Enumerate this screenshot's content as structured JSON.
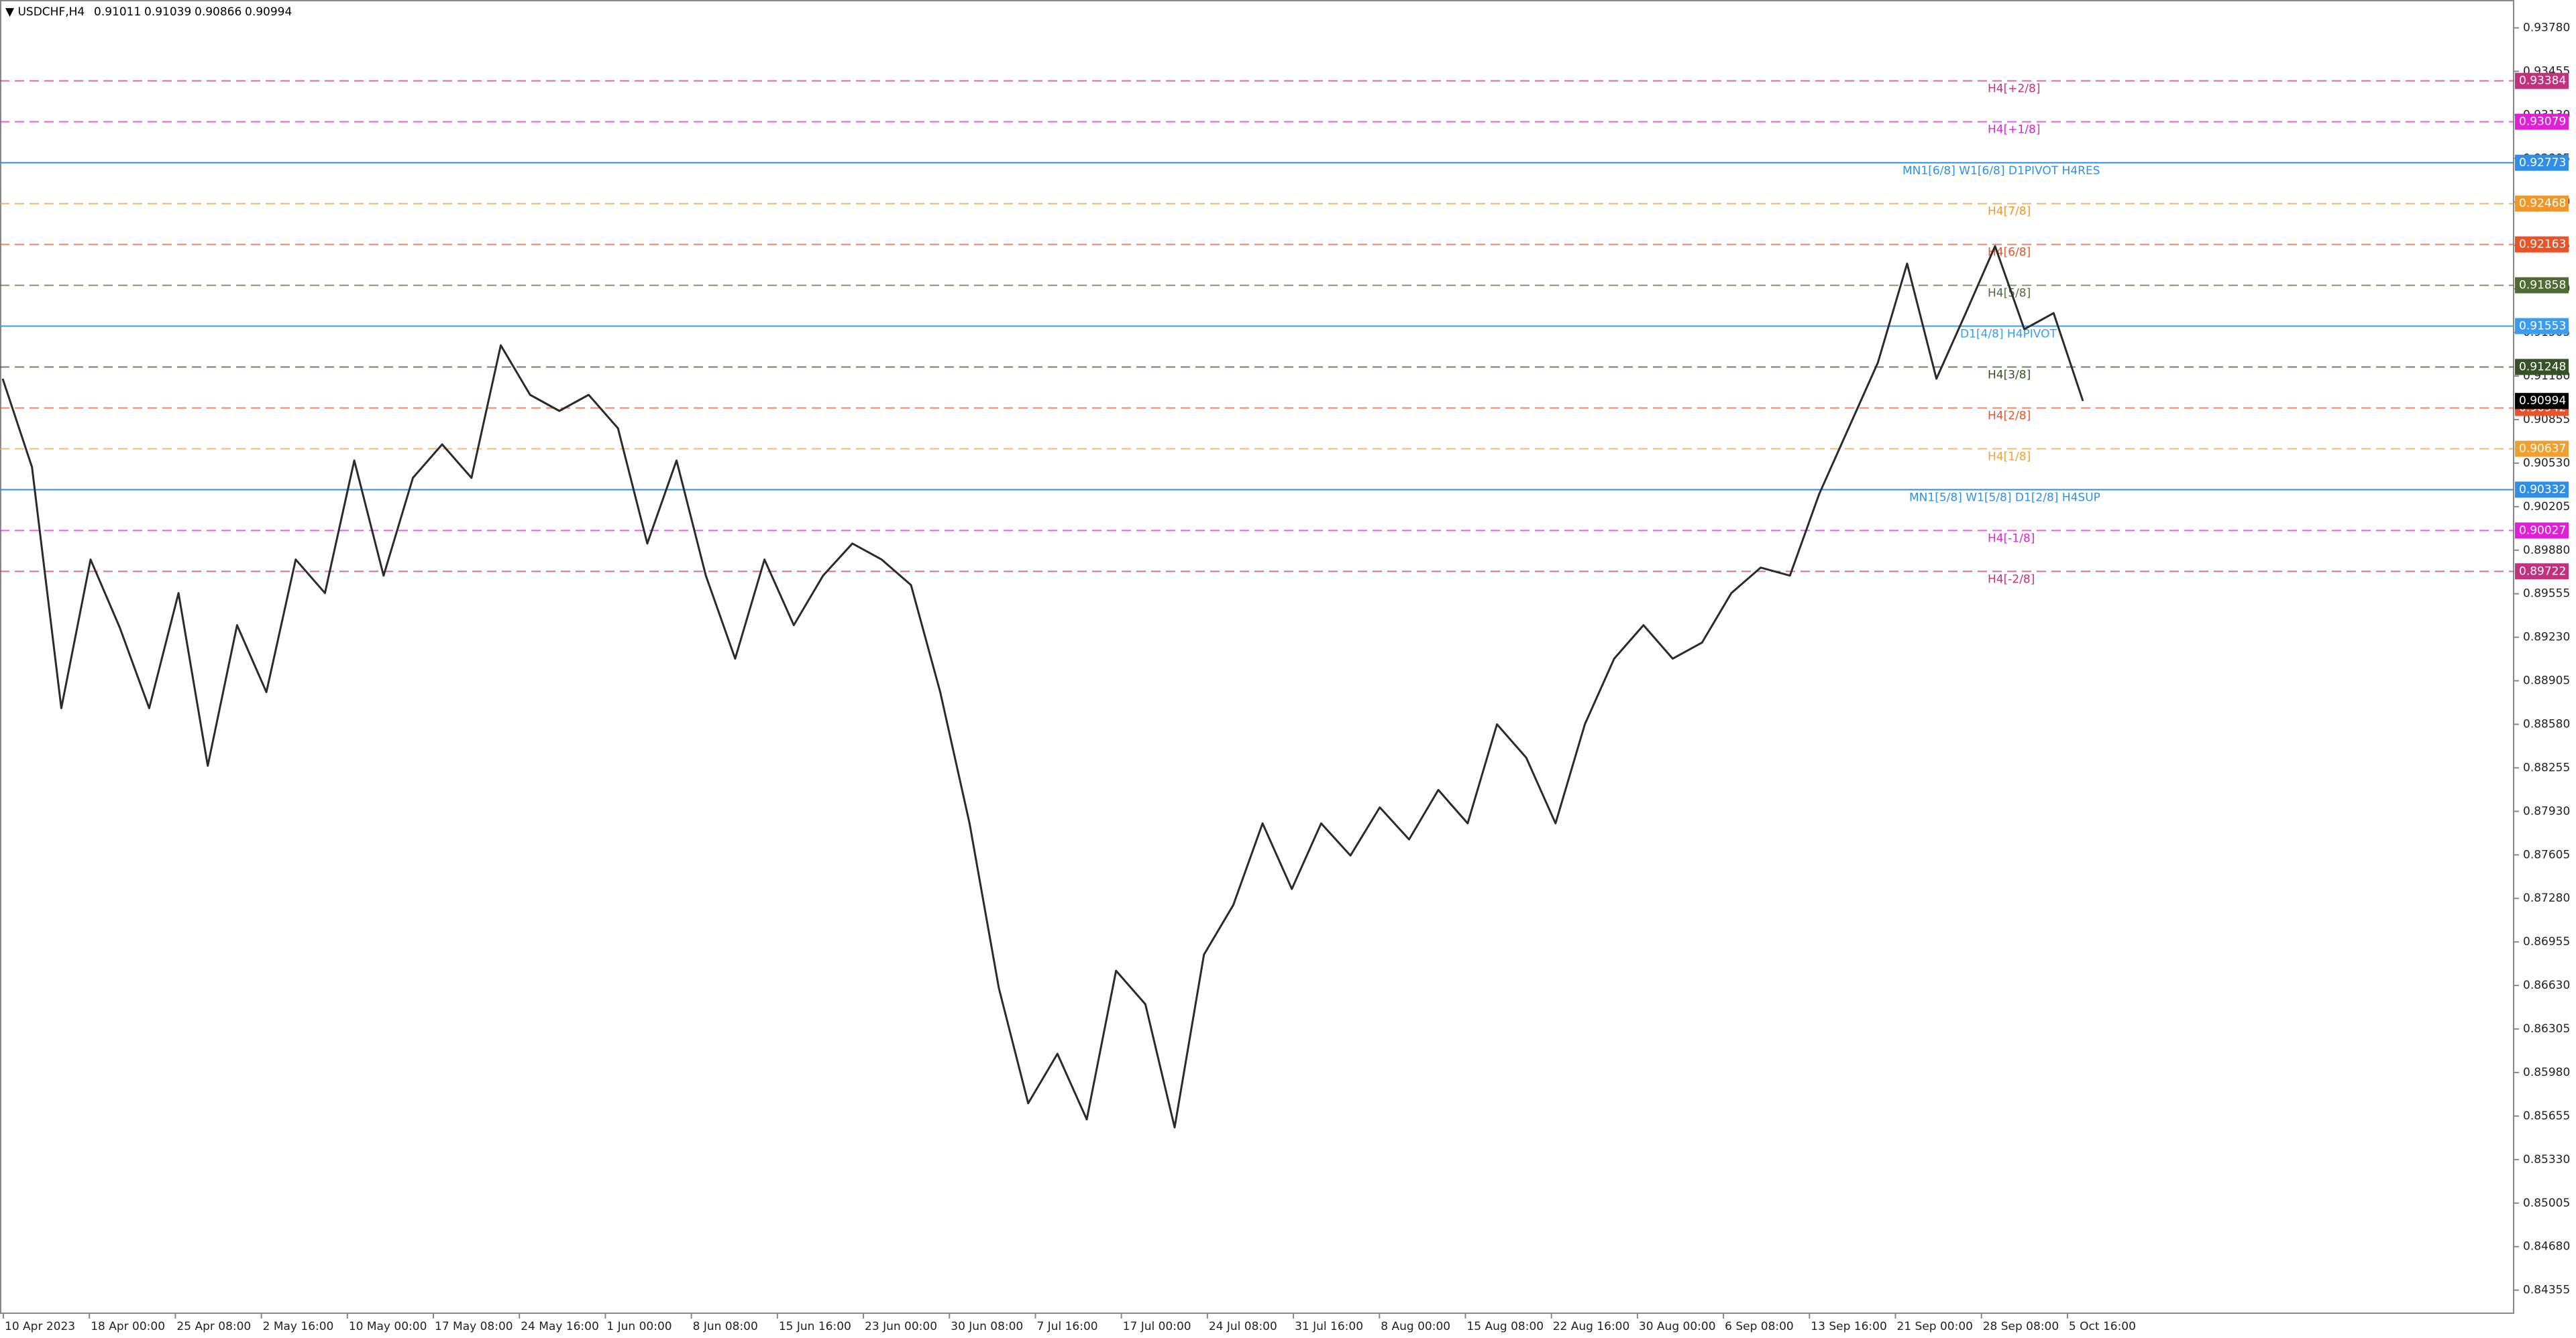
{
  "chart_data": {
    "type": "line",
    "header": {
      "symbol": "▼ USDCHF,H4",
      "open": 0.91011,
      "high": 0.91039,
      "low": 0.90866,
      "close": 0.90994
    },
    "color": "#2b2b2b",
    "values": [
      0.9116,
      0.905,
      0.887,
      0.8981,
      0.893,
      0.887,
      0.8956,
      0.8827,
      0.8932,
      0.8882,
      0.8981,
      0.8956,
      0.9055,
      0.8969,
      0.9042,
      0.9067,
      0.9042,
      0.9141,
      0.9104,
      0.9092,
      0.9104,
      0.9079,
      0.8993,
      0.9055,
      0.8969,
      0.8907,
      0.8981,
      0.8932,
      0.8969,
      0.8993,
      0.8981,
      0.8962,
      0.8882,
      0.8784,
      0.8661,
      0.8575,
      0.8612,
      0.8563,
      0.8674,
      0.8649,
      0.8557,
      0.8686,
      0.8723,
      0.8784,
      0.8735,
      0.8784,
      0.876,
      0.8796,
      0.8772,
      0.8809,
      0.8784,
      0.8858,
      0.8833,
      0.8784,
      0.8858,
      0.8907,
      0.8932,
      0.8907,
      0.8919,
      0.8956,
      0.8975,
      0.8969,
      0.903,
      0.9079,
      0.9128,
      0.9202,
      0.9116,
      0.9165,
      0.9215,
      0.9153,
      0.9165,
      0.90994
    ],
    "x_labels": [
      "10 Apr 2023",
      "18 Apr 00:00",
      "25 Apr 08:00",
      "2 May 16:00",
      "10 May 00:00",
      "17 May 08:00",
      "24 May 16:00",
      "1 Jun 00:00",
      "8 Jun 08:00",
      "15 Jun 16:00",
      "23 Jun 00:00",
      "30 Jun 08:00",
      "7 Jul 16:00",
      "17 Jul 00:00",
      "24 Jul 08:00",
      "31 Jul 16:00",
      "8 Aug 00:00",
      "15 Aug 08:00",
      "22 Aug 16:00",
      "30 Aug 00:00",
      "6 Sep 08:00",
      "13 Sep 16:00",
      "21 Sep 00:00",
      "28 Sep 08:00",
      "5 Oct 16:00"
    ],
    "ylim": [
      0.84183,
      0.93988
    ],
    "yticks": [
      {
        "value": 0.9378,
        "label": "0.93780"
      },
      0.93455,
      {
        "value": 0.9313,
        "label": "0.93130"
      },
      0.92805,
      {
        "value": 0.9248,
        "label": "0.92480"
      },
      0.92155,
      {
        "value": 0.9183,
        "label": "0.91830"
      },
      0.91505,
      {
        "value": 0.9118,
        "label": "0.91180"
      },
      0.90855,
      {
        "value": 0.9053,
        "label": "0.90530"
      },
      0.90205,
      {
        "value": 0.8988,
        "label": "0.89880"
      },
      0.89555,
      {
        "value": 0.8923,
        "label": "0.89230"
      },
      0.88905,
      {
        "value": 0.8858,
        "label": "0.88580"
      },
      0.88255,
      {
        "value": 0.8793,
        "label": "0.87930"
      },
      0.87605,
      {
        "value": 0.8728,
        "label": "0.87280"
      },
      0.86955,
      {
        "value": 0.8663,
        "label": "0.86630"
      },
      0.86305,
      {
        "value": 0.8598,
        "label": "0.85980"
      },
      0.85655,
      {
        "value": 0.8533,
        "label": "0.85330"
      },
      0.85005,
      {
        "value": 0.8468,
        "label": "0.84680"
      },
      0.84355
    ],
    "levels": [
      {
        "label": "H4[+2/8]",
        "value": 0.93384,
        "color": "#c2307e",
        "dashed": true
      },
      {
        "label": "H4[+1/8]",
        "value": 0.93079,
        "color": "#e020d8",
        "dashed": true
      },
      {
        "label": "MN1[6/8] W1[6/8] D1PIVOT H4RES",
        "value": 0.92773,
        "color": "#2f8fe8",
        "dashed": false
      },
      {
        "label": "H4[7/8]",
        "value": 0.92468,
        "color": "#f0972a",
        "dashed": true
      },
      {
        "label": "H4[6/8]",
        "value": 0.92163,
        "color": "#e8532a",
        "dashed": true
      },
      {
        "label": "H4[5/8]",
        "value": 0.91858,
        "color": "#4f6b33",
        "dashed": true
      },
      {
        "label": "D1[4/8] H4PIVOT",
        "value": 0.91553,
        "color": "#3a9cf0",
        "dashed": false
      },
      {
        "label": "H4[3/8]",
        "value": 0.91248,
        "color": "#365226",
        "dashed": true
      },
      {
        "label": "H4[2/8]",
        "value": 0.90942,
        "color": "#e8532a",
        "dashed": true
      },
      {
        "label": "H4[1/8]",
        "value": 0.90637,
        "color": "#f0a030",
        "dashed": true
      },
      {
        "label": "MN1[5/8] W1[5/8] D1[2/8] H4SUP",
        "value": 0.90332,
        "color": "#2f8fe8",
        "dashed": false
      },
      {
        "label": "H4[-1/8]",
        "value": 0.90027,
        "color": "#e020d8",
        "dashed": true
      },
      {
        "label": "H4[-2/8]",
        "value": 0.89722,
        "color": "#c2307e",
        "dashed": true
      }
    ]
  }
}
